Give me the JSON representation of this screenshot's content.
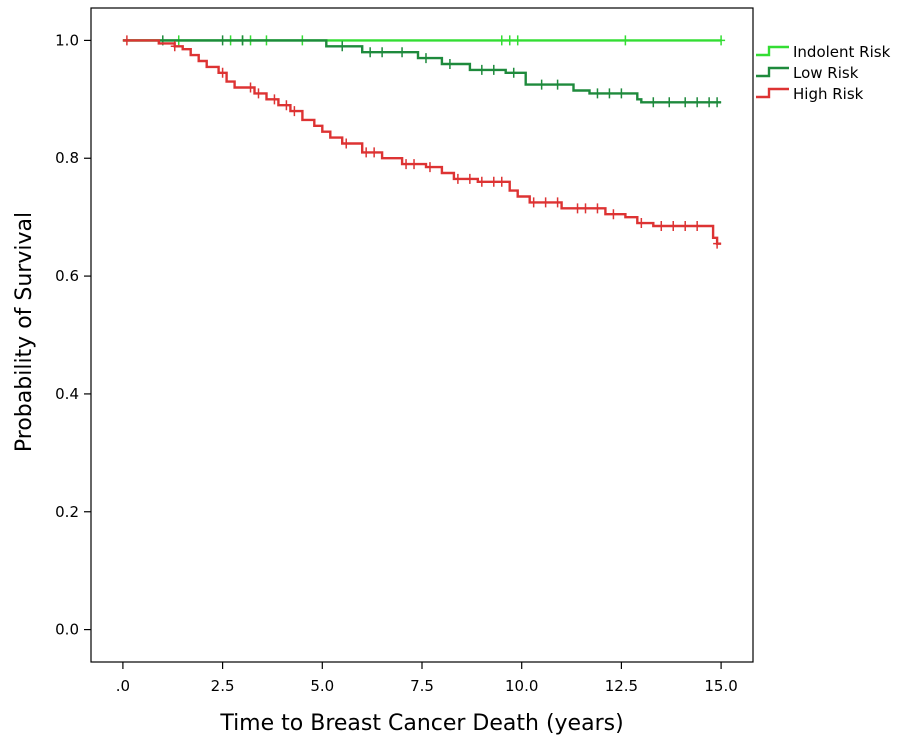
{
  "chart_data": {
    "type": "line",
    "chart_subtype": "kaplan-meier step",
    "xlabel": "Time to Breast Cancer Death (years)",
    "ylabel": "Probability of Survival",
    "xlim": [
      -0.8,
      15.8
    ],
    "ylim": [
      -0.055,
      1.055
    ],
    "x_ticks": [
      0,
      2.5,
      5.0,
      7.5,
      10.0,
      12.5,
      15.0
    ],
    "x_tick_labels": [
      ".0",
      "2.5",
      "5.0",
      "7.5",
      "10.0",
      "12.5",
      "15.0"
    ],
    "y_ticks": [
      0.0,
      0.2,
      0.4,
      0.6,
      0.8,
      1.0
    ],
    "y_tick_labels": [
      "0.0",
      "0.2",
      "0.4",
      "0.6",
      "0.8",
      "1.0"
    ],
    "grid": false,
    "legend_position": "outside-right-top",
    "censor_marker": "+",
    "series": [
      {
        "name": "Indolent Risk",
        "color": "#33dd33",
        "steps": [
          [
            0,
            1.0
          ],
          [
            15.0,
            1.0
          ]
        ],
        "censored": [
          [
            1.4,
            1.0
          ],
          [
            2.7,
            1.0
          ],
          [
            3.0,
            1.0
          ],
          [
            3.2,
            1.0
          ],
          [
            3.6,
            1.0
          ],
          [
            4.5,
            1.0
          ],
          [
            9.5,
            1.0
          ],
          [
            9.7,
            1.0
          ],
          [
            9.9,
            1.0
          ],
          [
            12.6,
            1.0
          ],
          [
            15.0,
            1.0
          ]
        ]
      },
      {
        "name": "Low Risk",
        "color": "#1e8a3c",
        "steps": [
          [
            0,
            1.0
          ],
          [
            5.1,
            0.99
          ],
          [
            6.0,
            0.98
          ],
          [
            7.4,
            0.97
          ],
          [
            8.0,
            0.96
          ],
          [
            8.7,
            0.95
          ],
          [
            9.6,
            0.945
          ],
          [
            10.1,
            0.925
          ],
          [
            11.3,
            0.915
          ],
          [
            11.7,
            0.91
          ],
          [
            12.9,
            0.9
          ],
          [
            13.0,
            0.895
          ],
          [
            15.0,
            0.895
          ]
        ],
        "censored": [
          [
            1.0,
            1.0
          ],
          [
            2.5,
            1.0
          ],
          [
            3.0,
            1.0
          ],
          [
            5.5,
            0.99
          ],
          [
            6.2,
            0.98
          ],
          [
            6.5,
            0.98
          ],
          [
            7.0,
            0.98
          ],
          [
            7.6,
            0.97
          ],
          [
            8.2,
            0.96
          ],
          [
            9.0,
            0.95
          ],
          [
            9.3,
            0.95
          ],
          [
            9.8,
            0.945
          ],
          [
            10.5,
            0.925
          ],
          [
            10.9,
            0.925
          ],
          [
            11.9,
            0.91
          ],
          [
            12.2,
            0.91
          ],
          [
            12.5,
            0.91
          ],
          [
            13.3,
            0.895
          ],
          [
            13.7,
            0.895
          ],
          [
            14.1,
            0.895
          ],
          [
            14.4,
            0.895
          ],
          [
            14.7,
            0.895
          ],
          [
            14.9,
            0.895
          ]
        ]
      },
      {
        "name": "High Risk",
        "color": "#dd3333",
        "steps": [
          [
            0,
            1.0
          ],
          [
            0.9,
            0.995
          ],
          [
            1.3,
            0.99
          ],
          [
            1.5,
            0.985
          ],
          [
            1.7,
            0.975
          ],
          [
            1.9,
            0.965
          ],
          [
            2.1,
            0.955
          ],
          [
            2.4,
            0.945
          ],
          [
            2.6,
            0.93
          ],
          [
            2.8,
            0.92
          ],
          [
            3.3,
            0.91
          ],
          [
            3.6,
            0.9
          ],
          [
            3.9,
            0.89
          ],
          [
            4.2,
            0.88
          ],
          [
            4.5,
            0.865
          ],
          [
            4.8,
            0.855
          ],
          [
            5.0,
            0.845
          ],
          [
            5.2,
            0.835
          ],
          [
            5.5,
            0.825
          ],
          [
            6.0,
            0.81
          ],
          [
            6.5,
            0.8
          ],
          [
            7.0,
            0.79
          ],
          [
            7.6,
            0.785
          ],
          [
            8.0,
            0.775
          ],
          [
            8.3,
            0.765
          ],
          [
            8.9,
            0.76
          ],
          [
            9.7,
            0.745
          ],
          [
            9.9,
            0.735
          ],
          [
            10.2,
            0.725
          ],
          [
            11.0,
            0.715
          ],
          [
            12.1,
            0.705
          ],
          [
            12.6,
            0.7
          ],
          [
            12.9,
            0.69
          ],
          [
            13.3,
            0.685
          ],
          [
            14.8,
            0.665
          ],
          [
            14.9,
            0.655
          ],
          [
            15.0,
            0.655
          ]
        ],
        "censored": [
          [
            0.1,
            1.0
          ],
          [
            1.3,
            0.99
          ],
          [
            2.5,
            0.945
          ],
          [
            3.2,
            0.92
          ],
          [
            3.4,
            0.91
          ],
          [
            3.8,
            0.9
          ],
          [
            4.1,
            0.89
          ],
          [
            4.3,
            0.88
          ],
          [
            5.6,
            0.825
          ],
          [
            6.1,
            0.81
          ],
          [
            6.3,
            0.81
          ],
          [
            7.1,
            0.79
          ],
          [
            7.3,
            0.79
          ],
          [
            7.7,
            0.785
          ],
          [
            8.4,
            0.765
          ],
          [
            8.7,
            0.765
          ],
          [
            9.0,
            0.76
          ],
          [
            9.3,
            0.76
          ],
          [
            9.5,
            0.76
          ],
          [
            10.3,
            0.725
          ],
          [
            10.6,
            0.725
          ],
          [
            10.9,
            0.725
          ],
          [
            11.4,
            0.715
          ],
          [
            11.6,
            0.715
          ],
          [
            11.9,
            0.715
          ],
          [
            12.3,
            0.705
          ],
          [
            13.0,
            0.69
          ],
          [
            13.5,
            0.685
          ],
          [
            13.8,
            0.685
          ],
          [
            14.1,
            0.685
          ],
          [
            14.4,
            0.685
          ],
          [
            14.9,
            0.655
          ]
        ]
      }
    ]
  }
}
